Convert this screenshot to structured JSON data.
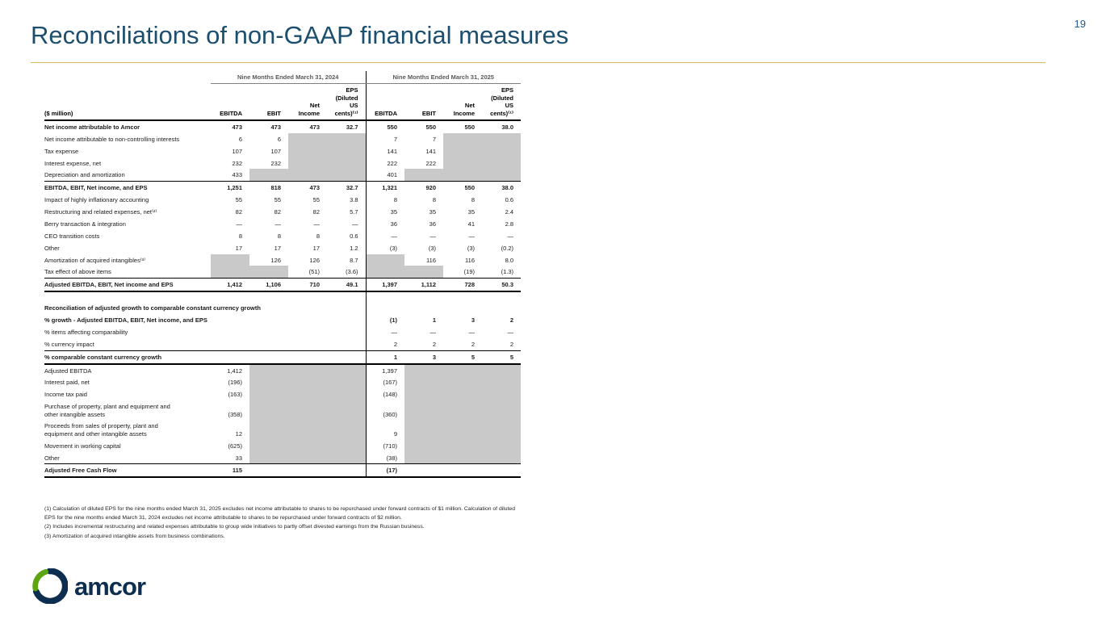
{
  "page_number": "19",
  "title": "Reconciliations of non-GAAP financial measures",
  "logo_text": "amcor",
  "colors": {
    "title_blue": "#1c4f6e",
    "gold_rule": "#d8b95a",
    "page_number_blue": "#1f5c8f",
    "shaded_cell_gray": "#c9c9c9",
    "logo_navy": "#0d2e4e",
    "logo_green": "#5da60f"
  },
  "table": {
    "unit_label": "($ million)",
    "periods": [
      "Nine Months Ended March 31, 2024",
      "Nine Months Ended March 31, 2025"
    ],
    "columns": [
      "EBITDA",
      "EBIT",
      "Net\nIncome",
      "EPS\n(Diluted\nUS\ncents)⁽¹⁾"
    ],
    "sections": [
      {
        "rows": [
          {
            "label": "Net income attributable to Amcor",
            "bold": true,
            "cells": [
              "473",
              "473",
              "473",
              "32.7",
              "550",
              "550",
              "550",
              "38.0"
            ]
          },
          {
            "label": "Net income attributable to non-controlling interests",
            "cells": [
              "6",
              "6",
              null,
              null,
              "7",
              "7",
              null,
              null
            ]
          },
          {
            "label": "Tax expense",
            "cells": [
              "107",
              "107",
              null,
              null,
              "141",
              "141",
              null,
              null
            ]
          },
          {
            "label": "Interest expense, net",
            "cells": [
              "232",
              "232",
              null,
              null,
              "222",
              "222",
              null,
              null
            ]
          },
          {
            "label": "Depreciation and amortization",
            "cells": [
              "433",
              null,
              null,
              null,
              "401",
              null,
              null,
              null
            ]
          },
          {
            "label": "EBITDA, EBIT, Net income, and EPS",
            "bold": true,
            "top": true,
            "cells": [
              "1,251",
              "818",
              "473",
              "32.7",
              "1,321",
              "920",
              "550",
              "38.0"
            ]
          },
          {
            "label": "Impact of highly inflationary accounting",
            "cells": [
              "55",
              "55",
              "55",
              "3.8",
              "8",
              "8",
              "8",
              "0.6"
            ]
          },
          {
            "label": "Restructuring and related expenses, net⁽²⁾",
            "cells": [
              "82",
              "82",
              "82",
              "5.7",
              "35",
              "35",
              "35",
              "2.4"
            ]
          },
          {
            "label": "Berry transaction & integration",
            "cells": [
              "—",
              "—",
              "—",
              "—",
              "36",
              "36",
              "41",
              "2.8"
            ]
          },
          {
            "label": "CEO transition costs",
            "cells": [
              "8",
              "8",
              "8",
              "0.6",
              "—",
              "—",
              "—",
              "—"
            ]
          },
          {
            "label": "Other",
            "cells": [
              "17",
              "17",
              "17",
              "1.2",
              "(3)",
              "(3)",
              "(3)",
              "(0.2)"
            ]
          },
          {
            "label": "Amortization of acquired intangibles⁽³⁾",
            "cells": [
              null,
              "126",
              "126",
              "8.7",
              null,
              "116",
              "116",
              "8.0"
            ]
          },
          {
            "label": "Tax effect of above items",
            "cells": [
              null,
              null,
              "(51)",
              "(3.6)",
              null,
              null,
              "(19)",
              "(1.3)"
            ]
          },
          {
            "label": "Adjusted EBITDA, EBIT, Net income and EPS",
            "bold": true,
            "top": true,
            "bottom": true,
            "cells": [
              "1,412",
              "1,106",
              "710",
              "49.1",
              "1,397",
              "1,112",
              "728",
              "50.3"
            ]
          }
        ]
      },
      {
        "title": "Reconciliation of adjusted growth to comparable constant currency growth",
        "span": true,
        "rows": [
          {
            "label": "% growth - Adjusted EBITDA, EBIT, Net income, and EPS",
            "bold": true,
            "cells": [
              "(1)",
              "1",
              "3",
              "2"
            ]
          },
          {
            "label": "% items affecting comparability",
            "cells": [
              "—",
              "—",
              "—",
              "—"
            ]
          },
          {
            "label": "% currency impact",
            "cells": [
              "2",
              "2",
              "2",
              "2"
            ]
          },
          {
            "label": "% comparable constant currency growth",
            "bold": true,
            "top": true,
            "bottom": true,
            "cells": [
              "1",
              "3",
              "5",
              "5"
            ]
          }
        ]
      },
      {
        "rows": [
          {
            "label": "Adjusted EBITDA",
            "cells": [
              "1,412",
              null,
              null,
              null,
              "1,397",
              null,
              null,
              null
            ]
          },
          {
            "label": "Interest paid, net",
            "cells": [
              "(196)",
              null,
              null,
              null,
              "(167)",
              null,
              null,
              null
            ]
          },
          {
            "label": "Income tax paid",
            "cells": [
              "(163)",
              null,
              null,
              null,
              "(148)",
              null,
              null,
              null
            ]
          },
          {
            "label": "Purchase of property, plant and equipment and other intangible assets",
            "cells": [
              "(358)",
              null,
              null,
              null,
              "(360)",
              null,
              null,
              null
            ]
          },
          {
            "label": "Proceeds from sales of property, plant and equipment and other intangible assets",
            "cells": [
              "12",
              null,
              null,
              null,
              "9",
              null,
              null,
              null
            ]
          },
          {
            "label": "Movement in working capital",
            "cells": [
              "(625)",
              null,
              null,
              null,
              "(710)",
              null,
              null,
              null
            ]
          },
          {
            "label": "Other",
            "cells": [
              "33",
              null,
              null,
              null,
              "(38)",
              null,
              null,
              null
            ]
          },
          {
            "label": "Adjusted Free Cash Flow",
            "bold": true,
            "top": true,
            "bottom": true,
            "cells": [
              "115",
              "",
              "",
              "",
              "(17)",
              "",
              "",
              ""
            ]
          }
        ]
      }
    ]
  },
  "footnotes": [
    "(1) Calculation of diluted EPS for the nine months ended March 31, 2025 excludes net income attributable to shares to be repurchased under forward contracts of $1 million.  Calculation of diluted EPS for the nine months ended March 31, 2024 excludes net income attributable to shares to be repurchased under forward contracts of $2 million.",
    "(2) Includes incremental restructuring and related expenses attributable to group wide initiatives to partly offset divested earnings from the Russian business.",
    "(3) Amortization of acquired intangible assets from business combinations."
  ]
}
